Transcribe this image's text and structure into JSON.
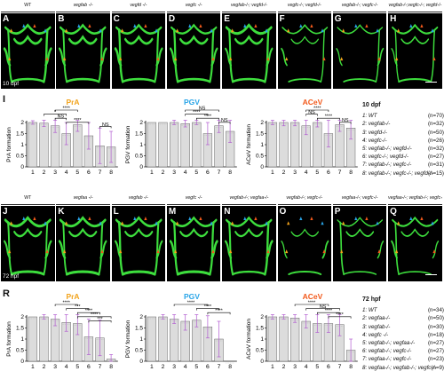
{
  "top": {
    "headers": [
      {
        "text": "WT",
        "italic": false
      },
      {
        "text": "vegfab -/-",
        "italic": true
      },
      {
        "text": "vegfd -/-",
        "italic": true
      },
      {
        "text": "vegfc -/-",
        "italic": true
      },
      {
        "text": "vegfab-/-; vegfd-/-",
        "italic": true
      },
      {
        "text": "vegfc-/-; vegfd-/-",
        "italic": true
      },
      {
        "text": "vegfab-/-; vegfc-/-",
        "italic": true
      },
      {
        "text": "vegfab-/-;vegfc-/-; vegfd-/-",
        "italic": true
      }
    ],
    "panels": [
      "A",
      "B",
      "C",
      "D",
      "E",
      "F",
      "G",
      "H"
    ],
    "stamp": "10 dpf",
    "section_label": "I",
    "charts": [
      {
        "title": "PrA",
        "title_color": "#f2a31b",
        "ylabel": "PrA formation",
        "values": [
          2.0,
          1.97,
          1.85,
          1.5,
          1.9,
          1.4,
          0.95,
          0.9
        ],
        "errs": [
          0.08,
          0.15,
          0.3,
          0.5,
          0.3,
          0.6,
          0.8,
          0.7
        ],
        "sig": [
          {
            "a": 3,
            "b": 5,
            "label": "****"
          },
          {
            "a": 2,
            "b": 4,
            "label": "*"
          },
          {
            "a": 3,
            "b": 4,
            "label": "NS"
          },
          {
            "a": 4,
            "b": 6,
            "label": "****"
          },
          {
            "a": 7,
            "b": 8,
            "label": "NS"
          }
        ]
      },
      {
        "title": "PGV",
        "title_color": "#2aa5e8",
        "ylabel": "PGV formation",
        "values": [
          2.0,
          2.0,
          2.0,
          1.95,
          2.0,
          1.5,
          1.85,
          1.6
        ],
        "errs": [
          0.0,
          0.0,
          0.1,
          0.15,
          0.1,
          0.5,
          0.3,
          0.5
        ],
        "sig": [
          {
            "a": 4,
            "b": 7,
            "label": "NS"
          },
          {
            "a": 4,
            "b": 6,
            "label": "****"
          },
          {
            "a": 5,
            "b": 7,
            "label": "****"
          },
          {
            "a": 7,
            "b": 8,
            "label": "NS"
          }
        ]
      },
      {
        "title": "ACeV",
        "title_color": "#f2591b",
        "ylabel": "ACeV formation",
        "values": [
          2.0,
          2.0,
          2.0,
          1.85,
          2.0,
          1.5,
          1.9,
          1.75
        ],
        "errs": [
          0.1,
          0.15,
          0.15,
          0.4,
          0.2,
          0.6,
          0.3,
          0.5
        ],
        "sig": [
          {
            "a": 4,
            "b": 6,
            "label": "****"
          },
          {
            "a": 4,
            "b": 5,
            "label": "NS"
          },
          {
            "a": 5,
            "b": 7,
            "label": "****"
          },
          {
            "a": 7,
            "b": 8,
            "label": "NS"
          }
        ]
      }
    ],
    "legend": {
      "title": "10 dpf",
      "rows": [
        {
          "label": "1: WT",
          "n": "(n=70)"
        },
        {
          "label": "2: vegfab-/-",
          "n": "(n=32)"
        },
        {
          "label": "3: vegfd-/-",
          "n": "(n=50)"
        },
        {
          "label": "4: vegfc-/-",
          "n": "(n=26)"
        },
        {
          "label": "5: vegfab-/-; vegfd-/-",
          "n": "(n=32)"
        },
        {
          "label": "6: vegfc-/-; vegfd-/-",
          "n": "(n=27)"
        },
        {
          "label": "7: vegfab-/-; vegfc-/-",
          "n": "(n=31)"
        },
        {
          "label": "8: vegfab-/-; vegfc-/-; vegfd-/-",
          "n": "(n=15)"
        }
      ]
    }
  },
  "bottom": {
    "headers": [
      {
        "text": "WT",
        "italic": false
      },
      {
        "text": "vegfaa -/-",
        "italic": true
      },
      {
        "text": "vegfab -/-",
        "italic": true
      },
      {
        "text": "vegfc -/-",
        "italic": true
      },
      {
        "text": "vegfab-/-; vegfaa-/-",
        "italic": true
      },
      {
        "text": "vegfab-/-; vegfc-/-",
        "italic": true
      },
      {
        "text": "vegfaa-/-; vegfc-/-",
        "italic": true
      },
      {
        "text": "vegfaa-/-; vegfab-/-; vegfc-/-",
        "italic": true
      }
    ],
    "panels": [
      "J",
      "K",
      "L",
      "M",
      "N",
      "O",
      "P",
      "Q"
    ],
    "stamp": "72 hpf",
    "section_label": "R",
    "charts": [
      {
        "title": "PrA",
        "title_color": "#f2a31b",
        "ylabel": "PrA formation",
        "values": [
          2.0,
          2.0,
          1.9,
          1.75,
          1.7,
          1.1,
          1.05,
          0.1
        ],
        "errs": [
          0.0,
          0.1,
          0.3,
          0.4,
          0.5,
          0.8,
          0.8,
          0.2
        ],
        "sig": [
          {
            "a": 3,
            "b": 5,
            "label": "****"
          },
          {
            "a": 4,
            "b": 6,
            "label": "***"
          },
          {
            "a": 5,
            "b": 7,
            "label": "****"
          },
          {
            "a": 5,
            "b": 8,
            "label": "****"
          },
          {
            "a": 6,
            "b": 8,
            "label": "***"
          }
        ]
      },
      {
        "title": "PGV",
        "title_color": "#2aa5e8",
        "ylabel": "PGV formation",
        "values": [
          2.0,
          2.0,
          1.9,
          1.8,
          1.85,
          1.55,
          1.0,
          0.0
        ],
        "errs": [
          0.0,
          0.1,
          0.2,
          0.4,
          0.3,
          0.5,
          0.8,
          0.0
        ],
        "sig": [
          {
            "a": 3,
            "b": 6,
            "label": "****"
          },
          {
            "a": 5,
            "b": 7,
            "label": "****"
          },
          {
            "a": 6,
            "b": 8,
            "label": "****"
          }
        ]
      },
      {
        "title": "ACeV",
        "title_color": "#f2591b",
        "ylabel": "ACeV formation",
        "values": [
          2.0,
          2.0,
          1.95,
          1.8,
          1.7,
          1.7,
          1.65,
          0.5
        ],
        "errs": [
          0.1,
          0.1,
          0.2,
          0.3,
          0.4,
          0.4,
          0.5,
          0.5
        ],
        "sig": [
          {
            "a": 3,
            "b": 6,
            "label": "****"
          },
          {
            "a": 4,
            "b": 7,
            "label": "NS"
          },
          {
            "a": 5,
            "b": 7,
            "label": "****"
          },
          {
            "a": 6,
            "b": 8,
            "label": "****"
          }
        ]
      }
    ],
    "legend": {
      "title": "72 hpf",
      "rows": [
        {
          "label": "1: WT",
          "n": "(n=34)"
        },
        {
          "label": "2: vegfaa-/-",
          "n": "(n=50)"
        },
        {
          "label": "3: vegfab-/-",
          "n": "(n=30)"
        },
        {
          "label": "4: vegfc -/-",
          "n": "(n=18)"
        },
        {
          "label": "5: vegfab-/-; vegfaa-/-",
          "n": "(n=27)"
        },
        {
          "label": "6: vegfab-/-; vegfc-/-",
          "n": "(n=27)"
        },
        {
          "label": "7: vegfaa-/-; vegfc-/-",
          "n": "(n=23)"
        },
        {
          "label": "8: vegfaa-/-; vegfab-/-; vegfc-/-",
          "n": "(n=9)"
        }
      ]
    }
  },
  "chart_data": [
    {
      "type": "bar",
      "title": "PrA",
      "ylabel": "PrA formation",
      "categories": [
        "1",
        "2",
        "3",
        "4",
        "5",
        "6",
        "7",
        "8"
      ],
      "values": [
        2.0,
        1.97,
        1.85,
        1.5,
        1.9,
        1.4,
        0.95,
        0.9
      ],
      "ylim": [
        0,
        2
      ],
      "yticks": [
        0,
        0.5,
        1,
        1.5,
        2
      ]
    },
    {
      "type": "bar",
      "title": "PGV",
      "ylabel": "PGV formation",
      "categories": [
        "1",
        "2",
        "3",
        "4",
        "5",
        "6",
        "7",
        "8"
      ],
      "values": [
        2.0,
        2.0,
        2.0,
        1.95,
        2.0,
        1.5,
        1.85,
        1.6
      ],
      "ylim": [
        0,
        2
      ],
      "yticks": [
        0,
        0.5,
        1,
        1.5,
        2
      ]
    },
    {
      "type": "bar",
      "title": "ACeV",
      "ylabel": "ACeV formation",
      "categories": [
        "1",
        "2",
        "3",
        "4",
        "5",
        "6",
        "7",
        "8"
      ],
      "values": [
        2.0,
        2.0,
        2.0,
        1.85,
        2.0,
        1.5,
        1.9,
        1.75
      ],
      "ylim": [
        0,
        2
      ],
      "yticks": [
        0,
        0.5,
        1,
        1.5,
        2
      ]
    },
    {
      "type": "bar",
      "title": "PrA",
      "ylabel": "PrA formation",
      "categories": [
        "1",
        "2",
        "3",
        "4",
        "5",
        "6",
        "7",
        "8"
      ],
      "values": [
        2.0,
        2.0,
        1.9,
        1.75,
        1.7,
        1.1,
        1.05,
        0.1
      ],
      "ylim": [
        0,
        2
      ],
      "yticks": [
        0,
        0.5,
        1,
        1.5,
        2
      ]
    },
    {
      "type": "bar",
      "title": "PGV",
      "ylabel": "PGV formation",
      "categories": [
        "1",
        "2",
        "3",
        "4",
        "5",
        "6",
        "7",
        "8"
      ],
      "values": [
        2.0,
        2.0,
        1.9,
        1.8,
        1.85,
        1.55,
        1.0,
        0.0
      ],
      "ylim": [
        0,
        2
      ],
      "yticks": [
        0,
        0.5,
        1,
        1.5,
        2
      ]
    },
    {
      "type": "bar",
      "title": "ACeV",
      "ylabel": "ACeV formation",
      "categories": [
        "1",
        "2",
        "3",
        "4",
        "5",
        "6",
        "7",
        "8"
      ],
      "values": [
        2.0,
        2.0,
        1.95,
        1.8,
        1.7,
        1.7,
        1.65,
        0.5
      ],
      "ylim": [
        0,
        2
      ],
      "yticks": [
        0,
        0.5,
        1,
        1.5,
        2
      ]
    }
  ]
}
